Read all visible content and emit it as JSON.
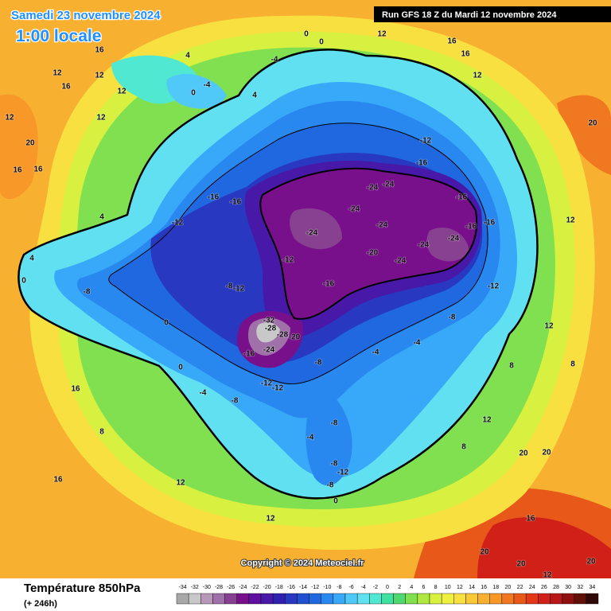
{
  "header": {
    "date": "Samedi 23 novembre 2024",
    "time": "1:00 locale",
    "run": "Run GFS 18 Z du Mardi 12 novembre 2024",
    "copyright": "Copyright © 2024 Meteociel.fr"
  },
  "legend": {
    "title": "Température 850hPa",
    "lead": "(+ 246h)",
    "levels": [
      -34,
      -32,
      -30,
      -28,
      -26,
      -24,
      -22,
      -20,
      -18,
      -16,
      -14,
      -12,
      -10,
      -8,
      -6,
      -4,
      -2,
      0,
      2,
      4,
      6,
      8,
      10,
      12,
      14,
      16,
      18,
      20,
      22,
      24,
      26,
      28,
      30,
      32,
      34
    ],
    "colors": [
      "#a8a8a8",
      "#c8c8c8",
      "#b898b8",
      "#a070a8",
      "#884090",
      "#78108c",
      "#6010a0",
      "#4818a8",
      "#3020b0",
      "#2838c0",
      "#2050d0",
      "#2068e0",
      "#2888f0",
      "#38a8f8",
      "#50c8f8",
      "#60e0f0",
      "#50e8d0",
      "#40e0a0",
      "#50d870",
      "#80e050",
      "#b0e840",
      "#d8f040",
      "#f0f040",
      "#f8e040",
      "#f8c838",
      "#f8b030",
      "#f89828",
      "#f07820",
      "#e85818",
      "#e03818",
      "#d02018",
      "#b81818",
      "#901010",
      "#601008",
      "#300808"
    ]
  },
  "contour_labels": [
    16,
    12,
    16,
    12,
    12,
    12,
    20,
    16,
    16,
    12,
    4,
    -4,
    0,
    4,
    -4,
    0,
    0,
    12,
    16,
    16,
    12,
    20,
    -16,
    -12,
    -24,
    -24,
    -24,
    -24,
    -24,
    -24,
    -24,
    -24,
    -20,
    -16,
    -16,
    -16,
    -12,
    -16,
    -16,
    -12,
    -16,
    -12,
    -8,
    -8,
    -32,
    -28,
    -28,
    -16,
    -24,
    -20,
    -12,
    -12,
    -8,
    -4,
    -4,
    -8,
    -8,
    -4,
    -4,
    -8,
    -8,
    -12,
    -8,
    0,
    16,
    8,
    16,
    12,
    12,
    12,
    20,
    20,
    16,
    20,
    20,
    20,
    12,
    12,
    12,
    8,
    8,
    8,
    4,
    4,
    0,
    0,
    0,
    -12
  ]
}
